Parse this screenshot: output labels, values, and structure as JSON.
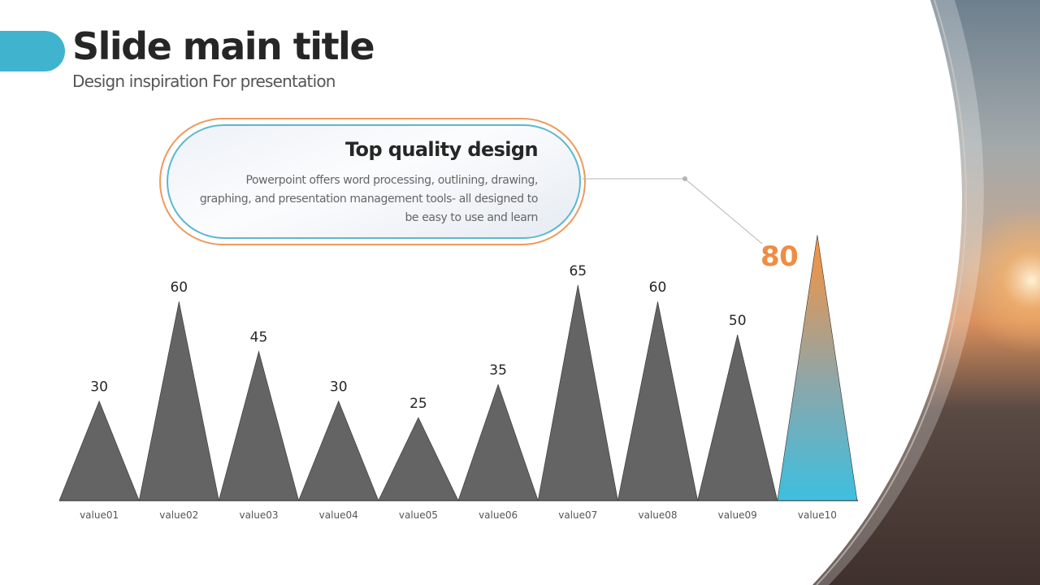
{
  "header": {
    "title": "Slide main title",
    "subtitle": "Design inspiration For presentation"
  },
  "callout": {
    "title": "Top quality design",
    "body": "Powerpoint offers word processing, outlining, drawing, graphing, and presentation management tools- all designed to be easy to use and learn"
  },
  "highlight": {
    "value_label": "80",
    "color": "#ef8d43"
  },
  "colors": {
    "accent": "#40b4cf",
    "triangle": "#646464",
    "gradient_top": "#fb923c",
    "gradient_bottom": "#3dbfe0"
  },
  "chart_data": {
    "type": "bar",
    "shape": "triangle",
    "categories": [
      "value01",
      "value02",
      "value03",
      "value04",
      "value05",
      "value06",
      "value07",
      "value08",
      "value09",
      "value10"
    ],
    "values": [
      30,
      60,
      45,
      30,
      25,
      35,
      65,
      60,
      50,
      80
    ],
    "value_labels": [
      "30",
      "60",
      "45",
      "30",
      "25",
      "35",
      "65",
      "60",
      "50",
      ""
    ],
    "highlight_index": 9,
    "ylim": [
      0,
      80
    ],
    "grid": false,
    "legend": "none"
  }
}
